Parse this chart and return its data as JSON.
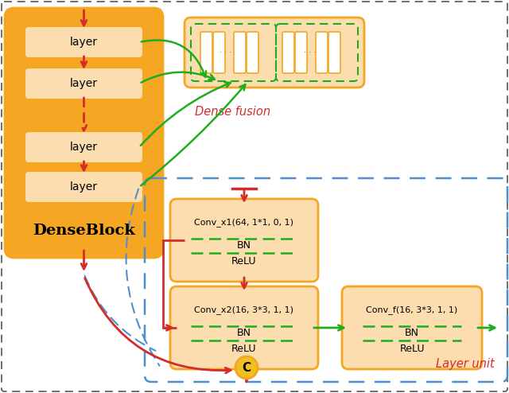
{
  "fig_w": 6.4,
  "fig_h": 4.94,
  "dpi": 100,
  "orange_fill": "#F5A623",
  "orange_light": "#F9C888",
  "orange_bg": "#F9C888",
  "red": "#D42B2B",
  "green": "#1FAD1F",
  "blue_dash": "#4F8FCC",
  "yellow": "#F0C020",
  "black": "#222222",
  "white": "#FFFFFF",
  "dense_block_label": "DenseBlock",
  "dense_fusion_label": "Dense fusion",
  "layer_unit_label": "Layer unit",
  "conv1_text": "Conv_x1(64, 1*1, 0, 1)",
  "conv2_text": "Conv_x2(16, 3*3, 1, 1)",
  "convf_text": "Conv_f(16, 3*3, 1, 1)",
  "bn_text": "BN",
  "relu_text": "ReLU",
  "concat_text": "C"
}
